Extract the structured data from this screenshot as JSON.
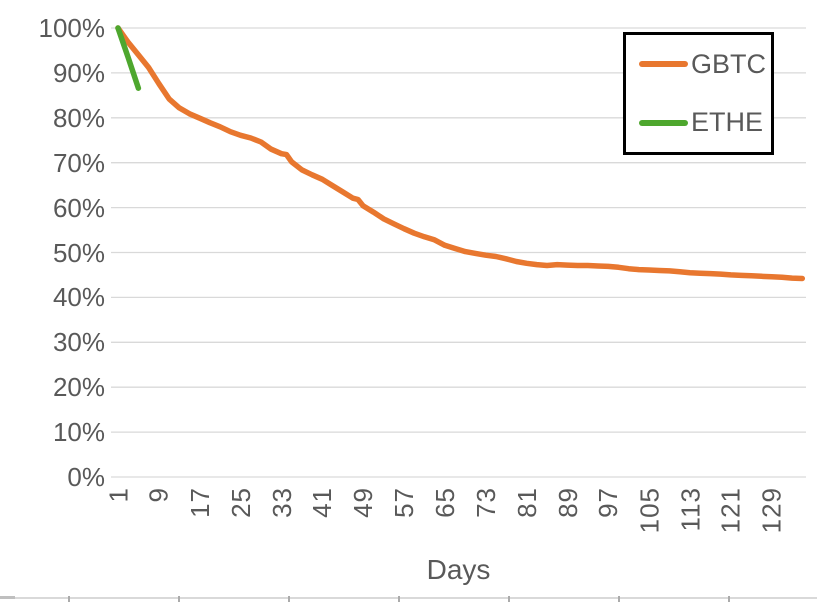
{
  "chart_data": {
    "type": "line",
    "title": "",
    "xlabel": "Days",
    "ylabel": "",
    "x_tick_labels": [
      "1",
      "9",
      "17",
      "25",
      "33",
      "41",
      "49",
      "57",
      "65",
      "73",
      "81",
      "89",
      "97",
      "105",
      "113",
      "121",
      "129"
    ],
    "x_tick_values": [
      1,
      9,
      17,
      25,
      33,
      41,
      49,
      57,
      65,
      73,
      81,
      89,
      97,
      105,
      113,
      121,
      129
    ],
    "y_tick_labels": [
      "0%",
      "10%",
      "20%",
      "30%",
      "40%",
      "50%",
      "60%",
      "70%",
      "80%",
      "90%",
      "100%"
    ],
    "y_tick_values": [
      0,
      10,
      20,
      30,
      40,
      50,
      60,
      70,
      80,
      90,
      100
    ],
    "ylim": [
      0,
      100
    ],
    "xlim": [
      1,
      136
    ],
    "grid": true,
    "legend": {
      "position": "top-right",
      "entries": [
        "GBTC",
        "ETHE"
      ]
    },
    "colors": {
      "gbtc": "#E8772F",
      "ethe": "#4EA72E",
      "gridline": "#D9D9D9",
      "axis_text": "#595959",
      "legend_border": "#000000",
      "background": "#FFFFFF"
    },
    "series": [
      {
        "name": "GBTC",
        "color": "#E8772F",
        "x": [
          1,
          3,
          5,
          7,
          9,
          11,
          13,
          15,
          17,
          19,
          21,
          23,
          25,
          27,
          29,
          31,
          33,
          34,
          35,
          37,
          39,
          41,
          43,
          45,
          47,
          48,
          49,
          51,
          53,
          55,
          57,
          59,
          61,
          63,
          65,
          67,
          69,
          71,
          73,
          75,
          77,
          79,
          81,
          83,
          85,
          87,
          89,
          91,
          93,
          95,
          97,
          99,
          101,
          103,
          105,
          107,
          109,
          111,
          113,
          115,
          117,
          119,
          121,
          123,
          125,
          127,
          129,
          131,
          133,
          135
        ],
        "y": [
          100,
          96.8,
          94.0,
          91.2,
          87.6,
          84.2,
          82.2,
          80.9,
          79.9,
          78.9,
          78.0,
          76.9,
          76.1,
          75.5,
          74.6,
          73.0,
          72.0,
          71.8,
          70.2,
          68.4,
          67.3,
          66.3,
          64.9,
          63.5,
          62.1,
          61.8,
          60.4,
          59.0,
          57.5,
          56.4,
          55.3,
          54.3,
          53.5,
          52.8,
          51.6,
          50.9,
          50.2,
          49.8,
          49.4,
          49.1,
          48.6,
          48.0,
          47.6,
          47.3,
          47.1,
          47.3,
          47.2,
          47.1,
          47.1,
          47.0,
          46.9,
          46.7,
          46.4,
          46.2,
          46.1,
          46.0,
          45.9,
          45.7,
          45.5,
          45.4,
          45.3,
          45.2,
          45.0,
          44.9,
          44.8,
          44.7,
          44.6,
          44.5,
          44.3,
          44.2
        ]
      },
      {
        "name": "ETHE",
        "color": "#4EA72E",
        "x": [
          1,
          2,
          3,
          4,
          5
        ],
        "y": [
          100,
          96.7,
          93.4,
          90.0,
          86.6
        ]
      }
    ]
  }
}
